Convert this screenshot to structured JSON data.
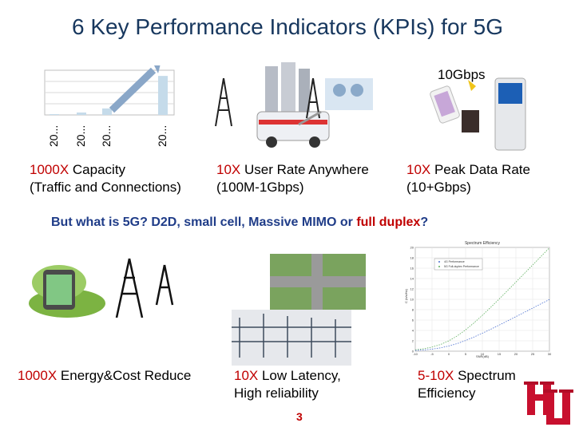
{
  "title": "6 Key Performance Indicators (KPIs) for 5G",
  "chart_data": {
    "type": "bar",
    "categories": [
      "20...",
      "20...",
      "20...",
      "20..."
    ],
    "values": [
      1,
      3,
      8,
      48
    ],
    "title": "",
    "xlabel": "",
    "ylabel": "",
    "ylim": [
      0,
      55
    ],
    "grid": true
  },
  "peak_label": "10Gbps",
  "kpi_top": {
    "capacity_mult": "1000X",
    "capacity_text": " Capacity",
    "capacity_sub": "(Traffic and Connections)",
    "user_rate_mult": "10X",
    "user_rate_text": " User Rate Anywhere",
    "user_rate_sub": "(100M-1Gbps)",
    "peak_mult": "10X",
    "peak_text": " Peak Data Rate",
    "peak_sub": "(10+Gbps)"
  },
  "question": {
    "prefix": "But what is 5G? D2D, small cell, Massive MIMO or ",
    "highlight": "full duplex",
    "suffix": "?"
  },
  "spectrum_chart": {
    "title": "Spectrum Efficiency",
    "legend": [
      "4G Performance",
      "5G Full-duplex Performance"
    ],
    "ylabel": "C (b/s/Hz)",
    "xlabel": "SNR(dB)",
    "y_ticks": [
      "20",
      "18",
      "16",
      "14",
      "12",
      "10",
      "8",
      "6",
      "4",
      "2",
      "0"
    ],
    "x_ticks": [
      "-10",
      "-5",
      "0",
      "5",
      "10",
      "15",
      "20",
      "25",
      "30"
    ]
  },
  "kpi_bottom": {
    "energy_mult": "1000X",
    "energy_text": " Energy&Cost Reduce",
    "latency_mult": "10X",
    "latency_text": " Low Latency,",
    "latency_sub": "High reliability",
    "spectrum_mult": "5-10X",
    "spectrum_text": " Spectrum",
    "spectrum_sub": "Efficiency"
  },
  "page_number": "3",
  "colors": {
    "accent_red": "#c00000",
    "title_blue": "#17375e",
    "question_blue": "#1f3c88",
    "bar": "#c5dbea"
  }
}
